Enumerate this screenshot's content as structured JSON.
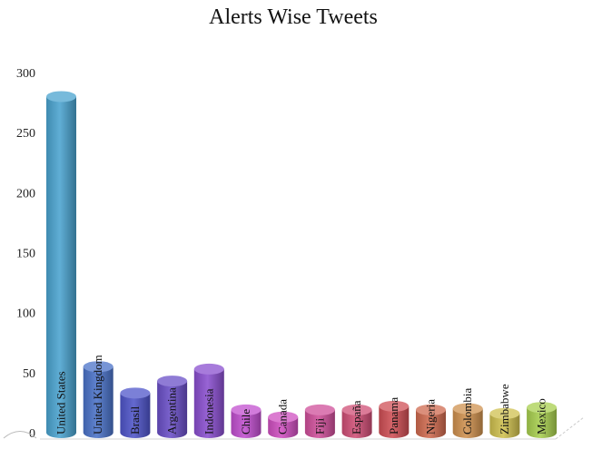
{
  "chart_data": {
    "type": "bar",
    "title": "Alerts Wise Tweets",
    "xlabel": "",
    "ylabel": "",
    "ylim": [
      0,
      300
    ],
    "yticks": [
      0,
      50,
      100,
      150,
      200,
      250,
      300
    ],
    "categories": [
      "United States",
      "United Kingdom",
      "Brasil",
      "Argentina",
      "Indonesia",
      "Chile",
      "Canada",
      "Fiji",
      "España",
      "Panama",
      "Nigeria",
      "Colombia",
      "Zimbabwe",
      "Mexico"
    ],
    "values": [
      280,
      55,
      33,
      43,
      53,
      19,
      13,
      19,
      19,
      22,
      19,
      20,
      16,
      21
    ],
    "colors": [
      "#4aa3cf",
      "#4a72c8",
      "#4f55c9",
      "#6a4fc7",
      "#8a4fcf",
      "#c14fcf",
      "#cf4fc0",
      "#cf4f9a",
      "#cf4f76",
      "#cf4f55",
      "#cf6a4f",
      "#cf914f",
      "#cfc04f",
      "#a8cf4f"
    ],
    "grid": false,
    "legend": "none"
  }
}
